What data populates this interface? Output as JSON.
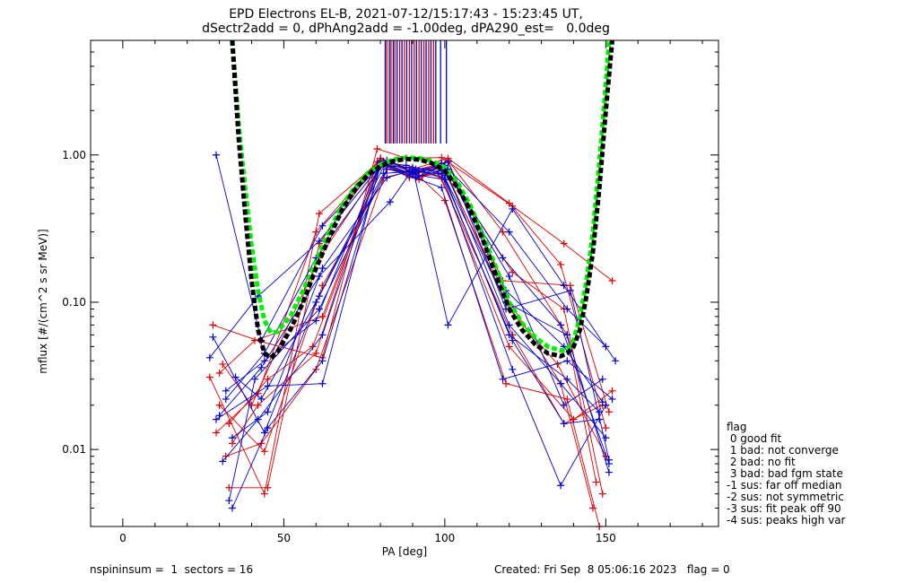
{
  "chart_data": {
    "type": "line",
    "title": "EPD Electrons EL-B, 2021-07-12/15:17:43 - 15:23:45 UT,",
    "subtitle": "dSectr2add = 0, dPhAng2add = -1.00deg, dPA290_est=   0.0deg",
    "xlabel": "PA [deg]",
    "ylabel": "mflux [#/(cm^2 s sr MeV)]",
    "xlim": [
      -10,
      185
    ],
    "ylim": [
      0.003,
      6.0
    ],
    "yscale": "log",
    "x_ticks": [
      "0",
      "50",
      "100",
      "150"
    ],
    "x_tick_values": [
      0,
      50,
      100,
      150
    ],
    "y_ticks": [
      "0.01",
      "0.10",
      "1.00"
    ],
    "y_tick_values": [
      0.01,
      0.1,
      1.0
    ],
    "colors": {
      "red": "#dd0000",
      "blue": "#0000cc",
      "green": "#00ee00",
      "black": "#000000"
    },
    "series": [
      {
        "color": "red",
        "x": [
          28,
          43,
          62,
          79,
          88,
          99,
          121,
          137,
          152
        ],
        "y": [
          0.07,
          0.054,
          0.042,
          1.1,
          0.95,
          0.96,
          0.45,
          0.25,
          0.14
        ]
      },
      {
        "color": "red",
        "x": [
          27,
          44,
          61,
          80,
          90,
          101,
          120,
          136,
          150
        ],
        "y": [
          0.031,
          0.005,
          0.4,
          0.92,
          0.8,
          0.95,
          0.47,
          0.18,
          0.014
        ]
      },
      {
        "color": "red",
        "x": [
          29,
          42,
          60,
          80,
          91,
          100,
          119,
          138,
          148
        ],
        "y": [
          0.013,
          0.024,
          0.3,
          0.95,
          0.75,
          0.49,
          0.028,
          0.022,
          0.003
        ]
      },
      {
        "color": "red",
        "x": [
          30,
          41,
          62,
          80,
          89,
          99,
          121,
          137,
          149
        ],
        "y": [
          0.033,
          0.055,
          0.08,
          0.88,
          0.7,
          0.88,
          0.16,
          0.09,
          0.005
        ]
      },
      {
        "color": "red",
        "x": [
          31,
          40,
          61,
          81,
          92,
          101,
          118,
          138,
          147
        ],
        "y": [
          0.038,
          0.02,
          0.2,
          0.9,
          0.68,
          0.92,
          0.3,
          0.06,
          0.006
        ]
      },
      {
        "color": "red",
        "x": [
          32,
          43,
          60,
          82,
          90,
          99,
          119,
          136,
          146
        ],
        "y": [
          0.009,
          0.011,
          0.035,
          0.8,
          0.74,
          0.85,
          0.11,
          0.028,
          0.004
        ]
      },
      {
        "color": "red",
        "x": [
          33,
          45,
          59,
          80,
          93,
          100,
          120,
          135,
          150
        ],
        "y": [
          0.015,
          0.03,
          0.05,
          0.85,
          0.72,
          0.8,
          0.09,
          0.038,
          0.009
        ]
      },
      {
        "color": "red",
        "x": [
          34,
          42,
          60,
          79,
          91,
          98,
          121,
          137,
          149
        ],
        "y": [
          0.011,
          0.02,
          0.045,
          0.9,
          0.7,
          0.75,
          0.06,
          0.015,
          0.02
        ]
      },
      {
        "color": "red",
        "x": [
          30,
          44,
          62,
          81,
          90,
          101,
          118,
          139,
          151
        ],
        "y": [
          0.02,
          0.0097,
          0.13,
          0.7,
          0.78,
          0.9,
          0.14,
          0.13,
          0.018
        ]
      },
      {
        "color": "red",
        "x": [
          33,
          45,
          61,
          80,
          88,
          99,
          120,
          140,
          152
        ],
        "y": [
          0.0055,
          0.0055,
          0.25,
          0.95,
          0.82,
          0.7,
          0.05,
          0.016,
          0.025
        ]
      },
      {
        "color": "blue",
        "x": [
          29,
          43,
          62,
          80,
          90,
          101,
          121,
          137,
          153
        ],
        "y": [
          1.0,
          0.055,
          0.33,
          0.85,
          0.82,
          0.07,
          0.43,
          0.13,
          0.04
        ]
      },
      {
        "color": "blue",
        "x": [
          27,
          42,
          61,
          81,
          89,
          100,
          120,
          138,
          150
        ],
        "y": [
          0.042,
          0.11,
          0.26,
          0.9,
          0.78,
          0.85,
          0.3,
          0.09,
          0.05
        ]
      },
      {
        "color": "blue",
        "x": [
          28,
          44,
          60,
          82,
          91,
          99,
          118,
          136,
          151
        ],
        "y": [
          0.058,
          0.013,
          0.1,
          0.92,
          0.75,
          0.88,
          0.2,
          0.07,
          0.008
        ]
      },
      {
        "color": "blue",
        "x": [
          29,
          45,
          62,
          80,
          92,
          101,
          119,
          137,
          149
        ],
        "y": [
          0.016,
          0.027,
          0.028,
          0.88,
          0.72,
          0.8,
          0.12,
          0.05,
          0.021
        ]
      },
      {
        "color": "blue",
        "x": [
          30,
          43,
          61,
          83,
          90,
          100,
          120,
          138,
          148
        ],
        "y": [
          0.017,
          0.036,
          0.15,
          0.48,
          0.8,
          0.7,
          0.06,
          0.03,
          0.018
        ]
      },
      {
        "color": "blue",
        "x": [
          31,
          42,
          62,
          80,
          88,
          99,
          121,
          136,
          150
        ],
        "y": [
          0.0083,
          0.016,
          0.06,
          0.9,
          0.85,
          0.75,
          0.035,
          0.0057,
          0.02
        ]
      },
      {
        "color": "blue",
        "x": [
          32,
          44,
          60,
          81,
          91,
          101,
          119,
          139,
          151
        ],
        "y": [
          0.022,
          0.045,
          0.2,
          0.86,
          0.7,
          0.9,
          0.09,
          0.12,
          0.0085
        ]
      },
      {
        "color": "blue",
        "x": [
          33,
          41,
          61,
          82,
          90,
          100,
          120,
          137,
          149
        ],
        "y": [
          0.0045,
          0.03,
          0.09,
          0.8,
          0.76,
          0.82,
          0.15,
          0.02,
          0.03
        ]
      },
      {
        "color": "blue",
        "x": [
          34,
          45,
          62,
          80,
          89,
          99,
          118,
          138,
          152
        ],
        "y": [
          0.004,
          0.014,
          0.04,
          0.84,
          0.72,
          0.6,
          0.03,
          0.04,
          0.022
        ]
      },
      {
        "color": "blue",
        "x": [
          35,
          43,
          61,
          81,
          92,
          101,
          120,
          136,
          150
        ],
        "y": [
          0.031,
          0.022,
          0.11,
          0.75,
          0.78,
          0.72,
          0.07,
          0.028,
          0.012
        ]
      },
      {
        "color": "blue",
        "x": [
          32,
          44,
          60,
          80,
          90,
          100,
          121,
          137,
          148
        ],
        "y": [
          0.025,
          0.04,
          0.075,
          0.9,
          0.74,
          0.68,
          0.055,
          0.015,
          0.016
        ]
      },
      {
        "color": "blue",
        "x": [
          34,
          45,
          62,
          82,
          91,
          99,
          119,
          138,
          151
        ],
        "y": [
          0.012,
          0.018,
          0.17,
          0.7,
          0.8,
          0.78,
          0.1,
          0.06,
          0.007
        ]
      }
    ],
    "fit_curves": [
      {
        "color": "green",
        "style": "dashed",
        "x": [
          34,
          36,
          38,
          40,
          42,
          44,
          46,
          48,
          52,
          56,
          60,
          64,
          68,
          72,
          76,
          80,
          84,
          88,
          92,
          96,
          100,
          104,
          108,
          112,
          116,
          120,
          124,
          128,
          132,
          136,
          138,
          140,
          142,
          144,
          146,
          148,
          150,
          151
        ],
        "y": [
          6.0,
          1.6,
          0.6,
          0.24,
          0.12,
          0.075,
          0.062,
          0.063,
          0.08,
          0.12,
          0.19,
          0.3,
          0.45,
          0.6,
          0.75,
          0.86,
          0.93,
          0.96,
          0.95,
          0.91,
          0.82,
          0.65,
          0.45,
          0.28,
          0.17,
          0.1,
          0.072,
          0.058,
          0.05,
          0.047,
          0.048,
          0.055,
          0.08,
          0.14,
          0.3,
          0.9,
          3.0,
          6.0
        ]
      },
      {
        "color": "black",
        "style": "dashed",
        "x": [
          34,
          36,
          38,
          40,
          42,
          44,
          46,
          48,
          52,
          56,
          60,
          64,
          68,
          72,
          76,
          80,
          84,
          88,
          92,
          96,
          100,
          104,
          108,
          112,
          116,
          120,
          124,
          128,
          132,
          136,
          138,
          140,
          142,
          144,
          146,
          148,
          150,
          152
        ],
        "y": [
          6.0,
          1.3,
          0.4,
          0.14,
          0.065,
          0.045,
          0.042,
          0.046,
          0.065,
          0.1,
          0.17,
          0.27,
          0.42,
          0.58,
          0.73,
          0.84,
          0.91,
          0.94,
          0.93,
          0.88,
          0.78,
          0.6,
          0.42,
          0.26,
          0.15,
          0.09,
          0.065,
          0.052,
          0.045,
          0.043,
          0.045,
          0.05,
          0.065,
          0.11,
          0.22,
          0.6,
          2.0,
          6.0
        ]
      }
    ],
    "vertical_markers": [
      {
        "color": "red",
        "x": [
          82,
          83.3,
          84.5,
          86,
          87.5,
          89,
          90.5,
          92,
          93.5,
          95,
          96.5
        ]
      },
      {
        "color": "blue",
        "x": [
          81.5,
          82.8,
          84,
          85.2,
          86.7,
          88.2,
          89.7,
          91.2,
          92.7,
          94.2,
          95.7,
          97.2,
          98.7,
          100.5
        ]
      }
    ],
    "legend": {
      "title": "flag",
      "entries": [
        " 0 good fit",
        " 1 bad: not converge",
        " 2 bad: no fit",
        " 3 bad: bad fgm state",
        "-1 sus: far off median",
        "-2 sus: not symmetric",
        "-3 sus: fit peak off 90",
        "-4 sus: peaks high var"
      ]
    }
  },
  "footer": {
    "left": "nspininsum =  1  sectors = 16",
    "right": "Created: Fri Sep  8 05:06:16 2023   flag = 0"
  }
}
